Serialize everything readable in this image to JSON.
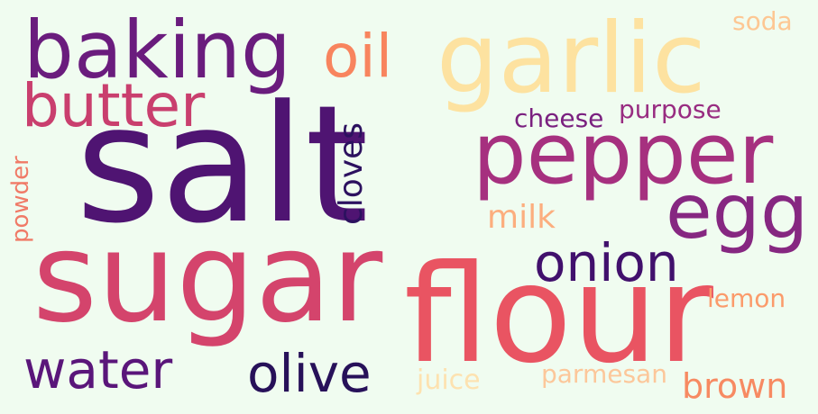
{
  "words": {
    "salt": {
      "text": "salt",
      "color": "#4f1472"
    },
    "sugar": {
      "text": "sugar",
      "color": "#d4446c"
    },
    "flour": {
      "text": "flour",
      "color": "#e95462"
    },
    "garlic": {
      "text": "garlic",
      "color": "#fde2a0"
    },
    "baking": {
      "text": "baking",
      "color": "#6a1c7d"
    },
    "pepper": {
      "text": "pepper",
      "color": "#a6307f"
    },
    "egg": {
      "text": "egg",
      "color": "#862781"
    },
    "butter": {
      "text": "butter",
      "color": "#c93f6e"
    },
    "oil": {
      "text": "oil",
      "color": "#f8845e"
    },
    "onion": {
      "text": "onion",
      "color": "#41106c"
    },
    "water": {
      "text": "water",
      "color": "#5a167a"
    },
    "olive": {
      "text": "olive",
      "color": "#271159"
    },
    "cloves": {
      "text": "cloves",
      "color": "#2c115f"
    },
    "milk": {
      "text": "milk",
      "color": "#fcae7e"
    },
    "brown": {
      "text": "brown",
      "color": "#f78a62"
    },
    "cheese": {
      "text": "cheese",
      "color": "#7a207f"
    },
    "purpose": {
      "text": "purpose",
      "color": "#982c81"
    },
    "soda": {
      "text": "soda",
      "color": "#fdc793"
    },
    "lemon": {
      "text": "lemon",
      "color": "#fb9b6b"
    },
    "powder": {
      "text": "powder",
      "color": "#f07a67"
    },
    "juice": {
      "text": "juice",
      "color": "#fde2b0"
    },
    "parmesan": {
      "text": "parmesan",
      "color": "#fcc79a"
    }
  }
}
